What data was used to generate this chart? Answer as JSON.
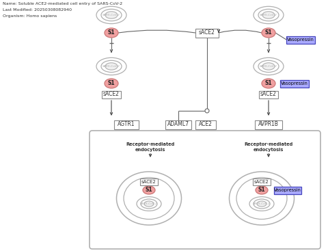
{
  "title_lines": [
    "Name: Soluble ACE2-mediated cell entry of SARS-CoV-2",
    "Last Modified: 20250308082940",
    "Organism: Homo sapiens"
  ],
  "bg_color": "#ffffff",
  "lgray": "#b0b0b0",
  "pink_face": "#f0a0a0",
  "pink_edge": "#cc7777",
  "blue_fill": "#aaaaff",
  "blue_edge": "#4444bb",
  "box_edge": "#888888",
  "arrow_color": "#444444",
  "line_color": "#666666",
  "text_color": "#333333",
  "virus_inner_fill": "#f0f0f0"
}
